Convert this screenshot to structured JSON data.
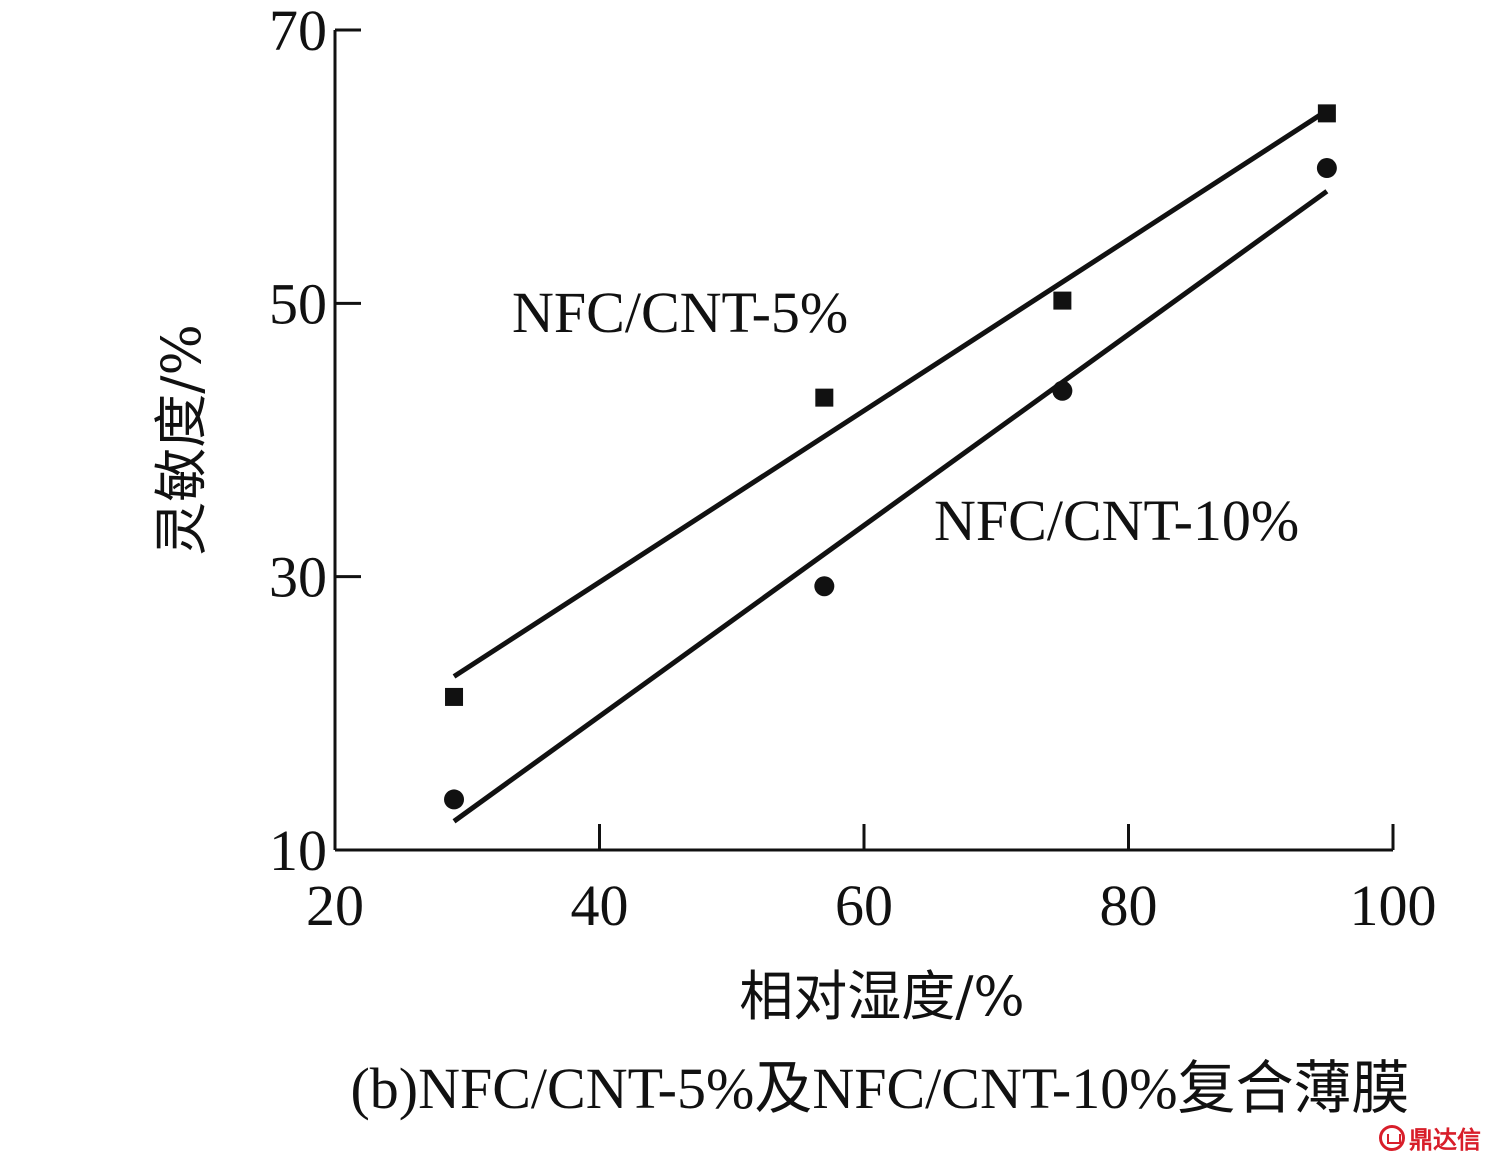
{
  "chart_data": {
    "type": "scatter",
    "xlabel": "相对湿度/%",
    "ylabel": "灵敏度/%",
    "caption": "(b)NFC/CNT-5%及NFC/CNT-10%复合薄膜",
    "xlim": [
      20,
      100
    ],
    "ylim": [
      10,
      70
    ],
    "xticks": [
      20,
      40,
      60,
      80,
      100
    ],
    "yticks": [
      10,
      30,
      50,
      70
    ],
    "grid": false,
    "series": [
      {
        "name": "NFC/CNT-5%",
        "marker": "square",
        "x": [
          29,
          57,
          75,
          95
        ],
        "y": [
          21.2,
          43.1,
          50.2,
          63.9
        ],
        "fit": {
          "x": [
            29,
            95
          ],
          "y": [
            22.7,
            64.1
          ]
        }
      },
      {
        "name": "NFC/CNT-10%",
        "marker": "circle",
        "x": [
          29,
          57,
          75,
          95
        ],
        "y": [
          13.7,
          29.3,
          43.6,
          59.9
        ],
        "fit": {
          "x": [
            29,
            95
          ],
          "y": [
            12.1,
            58.2
          ]
        }
      }
    ]
  },
  "watermark": "鼎达信"
}
